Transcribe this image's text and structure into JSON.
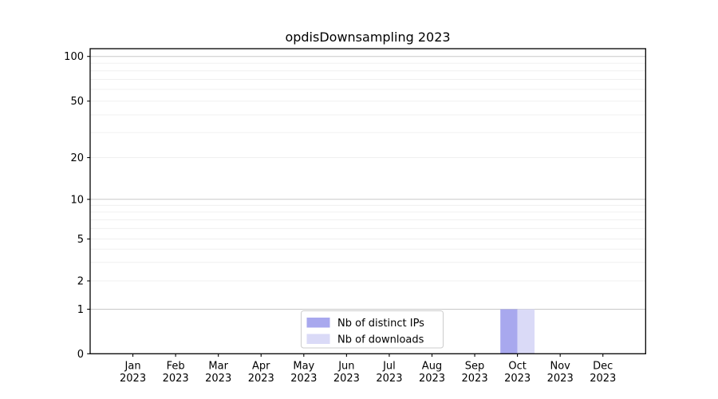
{
  "chart_data": {
    "type": "bar",
    "title": "opdisDownsampling 2023",
    "categories": [
      {
        "month": "Jan",
        "year": "2023"
      },
      {
        "month": "Feb",
        "year": "2023"
      },
      {
        "month": "Mar",
        "year": "2023"
      },
      {
        "month": "Apr",
        "year": "2023"
      },
      {
        "month": "May",
        "year": "2023"
      },
      {
        "month": "Jun",
        "year": "2023"
      },
      {
        "month": "Jul",
        "year": "2023"
      },
      {
        "month": "Aug",
        "year": "2023"
      },
      {
        "month": "Sep",
        "year": "2023"
      },
      {
        "month": "Oct",
        "year": "2023"
      },
      {
        "month": "Nov",
        "year": "2023"
      },
      {
        "month": "Dec",
        "year": "2023"
      }
    ],
    "series": [
      {
        "name": "Nb of distinct IPs",
        "color": "#a8a8ee",
        "values": [
          0,
          0,
          0,
          0,
          0,
          0,
          0,
          0,
          0,
          1,
          0,
          0
        ]
      },
      {
        "name": "Nb of downloads",
        "color": "#dadaf7",
        "values": [
          0,
          0,
          0,
          0,
          0,
          0,
          0,
          0,
          0,
          1,
          0,
          0
        ]
      }
    ],
    "xlabel": "",
    "ylabel": "",
    "y_axis": {
      "scale": "asinh-log-like",
      "tick_values": [
        0,
        1,
        2,
        5,
        10,
        20,
        50,
        100
      ],
      "tick_labels": [
        "0",
        "1",
        "2",
        "5",
        "10",
        "20",
        "50",
        "100"
      ],
      "major_grid_values": [
        1,
        10,
        100
      ],
      "minor_grid_values": [
        2,
        3,
        4,
        5,
        6,
        7,
        8,
        9,
        20,
        30,
        40,
        50,
        60,
        70,
        80,
        90
      ],
      "ylim": [
        0,
        113
      ]
    },
    "legend": {
      "position": "lower center",
      "entries": [
        "Nb of distinct IPs",
        "Nb of downloads"
      ]
    },
    "grid": true,
    "colors": {
      "major_gridline": "#c8c8c8",
      "minor_gridline": "#f0f0f0",
      "spine": "#000000",
      "legend_border": "#cccccc",
      "background": "#ffffff"
    }
  }
}
